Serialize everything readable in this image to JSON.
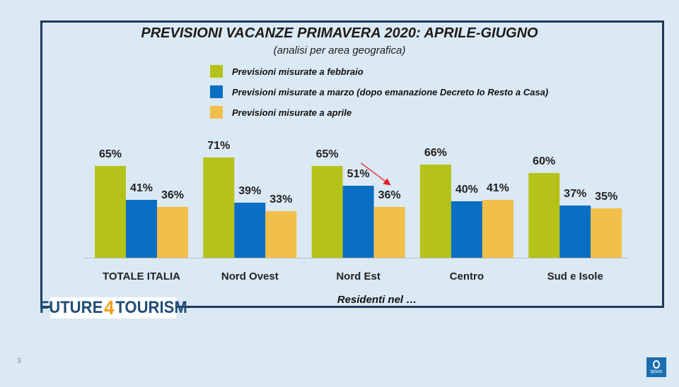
{
  "background": "#dbe9f4",
  "frame_color": "#1f3a5a",
  "logo": {
    "prefix": "FUTURE",
    "number": "4",
    "suffix": "TOURISM"
  },
  "page_number": "3",
  "brand": "Ipsos",
  "chart_data": {
    "type": "bar",
    "title": "PREVISIONI VACANZE PRIMAVERA 2020: APRILE-GIUGNO",
    "subtitle": "(analisi per area geografica)",
    "xlabel": "Residenti nel …",
    "ylabel": "",
    "categories": [
      "TOTALE ITALIA",
      "Nord Ovest",
      "Nord Est",
      "Centro",
      "Sud e Isole"
    ],
    "series": [
      {
        "name": "Previsioni misurate a febbraio",
        "color": "#b5c21a",
        "values": [
          65,
          71,
          65,
          66,
          60
        ],
        "labels": [
          "65%",
          "71%",
          "65%",
          "66%",
          "60%"
        ]
      },
      {
        "name": "Previsioni misurate a marzo (dopo emanazione Decreto Io Resto a Casa)",
        "color": "#0a6fc2",
        "values": [
          41,
          39,
          51,
          40,
          37
        ],
        "labels": [
          "41%",
          "39%",
          "51%",
          "40%",
          "37%"
        ]
      },
      {
        "name": "Previsioni misurate a aprile",
        "color": "#f1bf4a",
        "values": [
          36,
          33,
          36,
          41,
          35
        ],
        "labels": [
          "36%",
          "33%",
          "36%",
          "41%",
          "35%"
        ]
      }
    ],
    "ylim": [
      0,
      100
    ],
    "grid": false,
    "legend_position": "top",
    "annotation": {
      "type": "arrow",
      "category": "Nord Est",
      "series": "Previsioni misurate a aprile",
      "color": "#e02020"
    }
  }
}
